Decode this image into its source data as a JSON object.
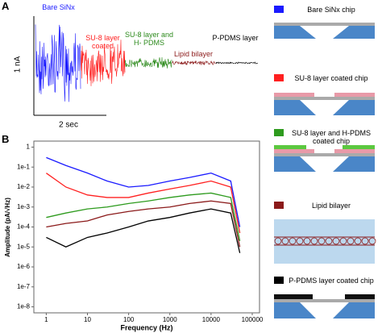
{
  "chart_data": [
    {
      "type": "trace",
      "panel_label": "A",
      "series": [
        {
          "name": "Bare SiNx",
          "color": "#1a1aff"
        },
        {
          "name": "SU-8 layer coated",
          "color": "#ff2020"
        },
        {
          "name": "SU-8 layer and H- PDMS",
          "color": "#2e8b1e"
        },
        {
          "name": "Lipid bilayer",
          "color": "#8b1a1a"
        },
        {
          "name": "P-PDMS layer",
          "color": "#000000"
        }
      ],
      "y_scale_label": "1 nA",
      "x_scale_label": "2 sec"
    },
    {
      "type": "line",
      "panel_label": "B",
      "log_x": true,
      "log_y": true,
      "xlabel": "Frequency (Hz)",
      "ylabel": "Amplitude (pA/√Hz)",
      "xlim": [
        0.5,
        150000
      ],
      "ylim": [
        2,
        5e-09
      ],
      "xticks": [
        1,
        10,
        100,
        1000,
        10000,
        100000
      ],
      "yticks": [
        1,
        {
          "value": 0.1,
          "label": "1e-1"
        },
        {
          "value": 0.01,
          "label": "1e-2"
        },
        {
          "value": 0.001,
          "label": "1e-3"
        },
        {
          "value": 0.0001,
          "label": "1e-4"
        },
        {
          "value": 1e-05,
          "label": "1e-5"
        },
        {
          "value": 1e-06,
          "label": "1e-6"
        },
        {
          "value": 1e-07,
          "label": "1e-7"
        },
        {
          "value": 1e-08,
          "label": "1e-8"
        }
      ],
      "x": [
        1,
        3,
        10,
        30,
        100,
        300,
        1000,
        3000,
        10000,
        30000,
        50000
      ],
      "series": [
        {
          "name": "Bare SiNx chip",
          "color": "#1a1aff",
          "values": [
            0.3,
            0.12,
            0.05,
            0.02,
            0.01,
            0.012,
            0.02,
            0.03,
            0.05,
            0.02,
            0.0001
          ]
        },
        {
          "name": "SU-8 layer coated chip",
          "color": "#ff2020",
          "values": [
            0.05,
            0.01,
            0.004,
            0.003,
            0.003,
            0.005,
            0.008,
            0.012,
            0.02,
            0.01,
            5e-05
          ]
        },
        {
          "name": "SU-8 layer and H-PDMS coated chip",
          "color": "#2e9b1e",
          "values": [
            0.0003,
            0.0005,
            0.0008,
            0.001,
            0.0015,
            0.002,
            0.003,
            0.004,
            0.005,
            0.003,
            2e-05
          ]
        },
        {
          "name": "Lipid bilayer",
          "color": "#8b1a1a",
          "values": [
            0.0001,
            0.00015,
            0.0002,
            0.0004,
            0.0006,
            0.0008,
            0.001,
            0.0015,
            0.002,
            0.0015,
            1e-05
          ]
        },
        {
          "name": "P-PDMS layer coated chip",
          "color": "#000000",
          "values": [
            3e-05,
            1e-05,
            3e-05,
            5e-05,
            0.0001,
            0.0002,
            0.0003,
            0.0005,
            0.0008,
            0.0005,
            5e-06
          ]
        }
      ]
    }
  ]
}
